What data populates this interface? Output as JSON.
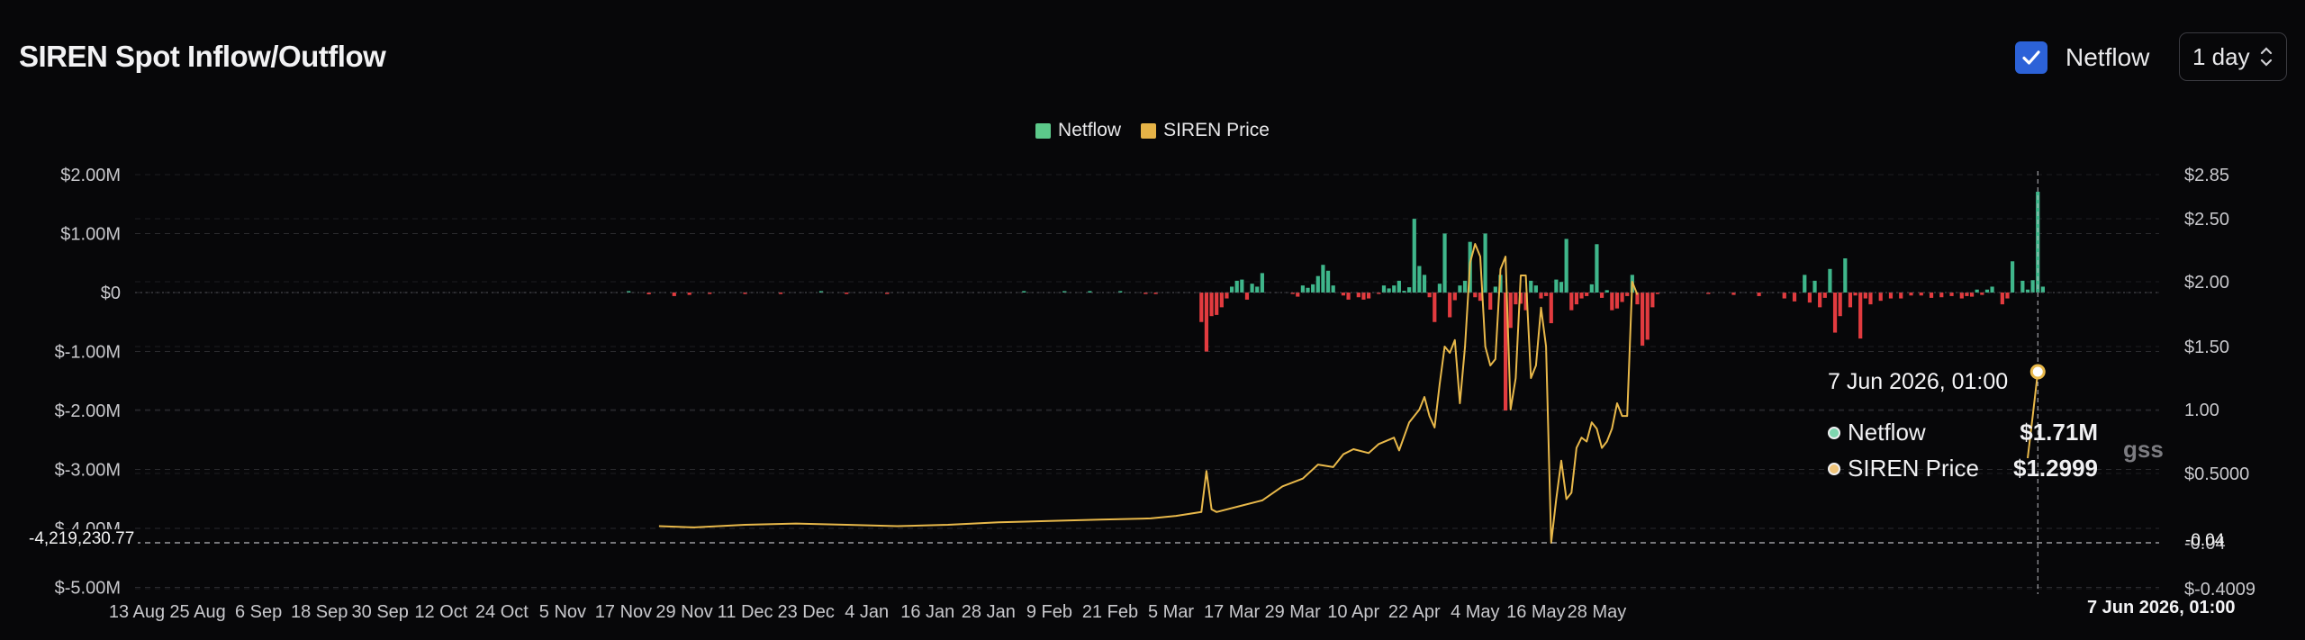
{
  "title": "SIREN Spot Inflow/Outflow",
  "controls": {
    "netflow_checkbox": {
      "label": "Netflow",
      "checked": true
    },
    "interval": {
      "value": "1 day"
    }
  },
  "colors": {
    "positive": "#3fb68b",
    "negative": "#e23b3f",
    "price": "#e8b84a",
    "grid": "#2a2a2e",
    "checkbox": "#2c62d8"
  },
  "legend": [
    {
      "label": "Netflow",
      "color": "#5cc98a"
    },
    {
      "label": "SIREN Price",
      "color": "#e6b347"
    }
  ],
  "tooltip": {
    "title": "7 Jun 2026, 01:00",
    "rows": [
      {
        "label": "Netflow",
        "value": "$1.71M",
        "color": "#7fd6b0"
      },
      {
        "label": "SIREN Price",
        "value": "$1.2999",
        "color": "#efc47a"
      }
    ]
  },
  "crosshair": {
    "y_left_label": "-4,219,230.77",
    "y_right_label": "-0.04",
    "x_label": "7 Jun 2026, 01:00"
  },
  "watermark": "gss",
  "chart_data": {
    "type": "bar+line",
    "left_axis": {
      "ticks": [
        2000000,
        1000000,
        0,
        -1000000,
        -2000000,
        -3000000,
        -4000000,
        -5000000
      ],
      "tick_labels": [
        "$2.00M",
        "$1.00M",
        "$0",
        "$-1.00M",
        "$-2.00M",
        "$-3.00M",
        "$-4.00M",
        "$-5.00M"
      ],
      "range": [
        -5000000,
        2000000
      ]
    },
    "right_axis": {
      "tick_values": [
        2.85,
        2.5,
        2.0,
        1.5,
        1.0,
        0.5,
        -0.04,
        -0.4009
      ],
      "tick_labels": [
        "$2.85",
        "$2.50",
        "$2.00",
        "$1.50",
        "1.00",
        "$0.5000",
        "-0.04",
        "$-0.4009"
      ]
    },
    "x_labels": [
      "13 Aug",
      "25 Aug",
      "6 Sep",
      "18 Sep",
      "30 Sep",
      "12 Oct",
      "24 Oct",
      "5 Nov",
      "17 Nov",
      "29 Nov",
      "11 Dec",
      "23 Dec",
      "4 Jan",
      "16 Jan",
      "28 Jan",
      "9 Feb",
      "21 Feb",
      "5 Mar",
      "17 Mar",
      "29 Mar",
      "10 Apr",
      "22 Apr",
      "4 May",
      "16 May",
      "28 May"
    ],
    "x_day_offset_note": "",
    "netflow_series": {
      "name": "Netflow",
      "points": [
        [
          97,
          10000
        ],
        [
          101,
          -30000
        ],
        [
          106,
          -60000
        ],
        [
          109,
          -40000
        ],
        [
          113,
          -20000
        ],
        [
          120,
          -20000
        ],
        [
          127,
          -10000
        ],
        [
          135,
          10000
        ],
        [
          140,
          -10000
        ],
        [
          148,
          -10000
        ],
        [
          175,
          10000
        ],
        [
          183,
          10000
        ],
        [
          188,
          20000
        ],
        [
          194,
          20000
        ],
        [
          199,
          -20000
        ],
        [
          201,
          -20000
        ],
        [
          210,
          -500000
        ],
        [
          211,
          -1000000
        ],
        [
          212,
          -400000
        ],
        [
          213,
          -380000
        ],
        [
          214,
          -250000
        ],
        [
          215,
          -100000
        ],
        [
          216,
          100000
        ],
        [
          217,
          200000
        ],
        [
          218,
          220000
        ],
        [
          219,
          -120000
        ],
        [
          220,
          150000
        ],
        [
          221,
          100000
        ],
        [
          222,
          330000
        ],
        [
          228,
          -20000
        ],
        [
          229,
          -70000
        ],
        [
          230,
          120000
        ],
        [
          231,
          80000
        ],
        [
          232,
          140000
        ],
        [
          233,
          280000
        ],
        [
          234,
          470000
        ],
        [
          235,
          370000
        ],
        [
          236,
          120000
        ],
        [
          238,
          -50000
        ],
        [
          239,
          -120000
        ],
        [
          241,
          -80000
        ],
        [
          242,
          -120000
        ],
        [
          243,
          -100000
        ],
        [
          245,
          -20000
        ],
        [
          246,
          120000
        ],
        [
          247,
          70000
        ],
        [
          248,
          120000
        ],
        [
          249,
          200000
        ],
        [
          250,
          30000
        ],
        [
          251,
          90000
        ],
        [
          252,
          1250000
        ],
        [
          253,
          450000
        ],
        [
          254,
          300000
        ],
        [
          255,
          -80000
        ],
        [
          256,
          -500000
        ],
        [
          257,
          150000
        ],
        [
          258,
          1000000
        ],
        [
          259,
          -420000
        ],
        [
          260,
          -130000
        ],
        [
          261,
          120000
        ],
        [
          262,
          200000
        ],
        [
          263,
          860000
        ],
        [
          264,
          -80000
        ],
        [
          265,
          -140000
        ],
        [
          266,
          1000000
        ],
        [
          267,
          -290000
        ],
        [
          268,
          100000
        ],
        [
          269,
          300000
        ],
        [
          270,
          -2000000
        ],
        [
          271,
          -600000
        ],
        [
          272,
          -200000
        ],
        [
          273,
          -190000
        ],
        [
          274,
          -300000
        ],
        [
          275,
          200000
        ],
        [
          276,
          120000
        ],
        [
          277,
          -100000
        ],
        [
          278,
          -60000
        ],
        [
          279,
          -520000
        ],
        [
          280,
          220000
        ],
        [
          281,
          180000
        ],
        [
          282,
          910000
        ],
        [
          283,
          -300000
        ],
        [
          284,
          -200000
        ],
        [
          285,
          -100000
        ],
        [
          286,
          -60000
        ],
        [
          287,
          140000
        ],
        [
          288,
          820000
        ],
        [
          289,
          -90000
        ],
        [
          290,
          40000
        ],
        [
          291,
          -300000
        ],
        [
          292,
          -270000
        ],
        [
          293,
          -160000
        ],
        [
          294,
          -60000
        ],
        [
          295,
          300000
        ],
        [
          296,
          -200000
        ],
        [
          297,
          -900000
        ],
        [
          298,
          -800000
        ],
        [
          299,
          -250000
        ],
        [
          300,
          -10000
        ],
        [
          310,
          -20000
        ],
        [
          315,
          -40000
        ],
        [
          320,
          -60000
        ],
        [
          325,
          -100000
        ],
        [
          327,
          -150000
        ],
        [
          329,
          300000
        ],
        [
          330,
          -170000
        ],
        [
          331,
          200000
        ],
        [
          332,
          -250000
        ],
        [
          333,
          -90000
        ],
        [
          334,
          400000
        ],
        [
          335,
          -680000
        ],
        [
          336,
          -400000
        ],
        [
          337,
          580000
        ],
        [
          338,
          -250000
        ],
        [
          339,
          -50000
        ],
        [
          340,
          -780000
        ],
        [
          341,
          -100000
        ],
        [
          342,
          -200000
        ],
        [
          344,
          -140000
        ],
        [
          346,
          -100000
        ],
        [
          348,
          -100000
        ],
        [
          350,
          -50000
        ],
        [
          352,
          -50000
        ],
        [
          354,
          -90000
        ],
        [
          356,
          -80000
        ],
        [
          358,
          -60000
        ],
        [
          360,
          -100000
        ],
        [
          361,
          -60000
        ],
        [
          362,
          -70000
        ],
        [
          363,
          50000
        ],
        [
          364,
          -40000
        ],
        [
          365,
          50000
        ],
        [
          366,
          100000
        ],
        [
          368,
          -200000
        ],
        [
          369,
          -100000
        ],
        [
          370,
          530000
        ],
        [
          372,
          200000
        ],
        [
          373,
          50000
        ],
        [
          374,
          210000
        ],
        [
          375,
          1710000
        ],
        [
          376,
          100000
        ]
      ]
    },
    "price_series": {
      "name": "SIREN Price",
      "points": [
        [
          103,
          0.09
        ],
        [
          110,
          0.08
        ],
        [
          120,
          0.1
        ],
        [
          130,
          0.11
        ],
        [
          140,
          0.1
        ],
        [
          150,
          0.09
        ],
        [
          160,
          0.1
        ],
        [
          170,
          0.12
        ],
        [
          180,
          0.13
        ],
        [
          190,
          0.14
        ],
        [
          200,
          0.15
        ],
        [
          205,
          0.17
        ],
        [
          210,
          0.2
        ],
        [
          211,
          0.52
        ],
        [
          212,
          0.22
        ],
        [
          213,
          0.2
        ],
        [
          218,
          0.25
        ],
        [
          222,
          0.29
        ],
        [
          226,
          0.4
        ],
        [
          230,
          0.46
        ],
        [
          233,
          0.57
        ],
        [
          236,
          0.55
        ],
        [
          238,
          0.65
        ],
        [
          240,
          0.69
        ],
        [
          243,
          0.66
        ],
        [
          245,
          0.73
        ],
        [
          248,
          0.78
        ],
        [
          249,
          0.68
        ],
        [
          251,
          0.9
        ],
        [
          253,
          1.0
        ],
        [
          254,
          1.1
        ],
        [
          255,
          0.95
        ],
        [
          256,
          0.86
        ],
        [
          257,
          1.2
        ],
        [
          258,
          1.5
        ],
        [
          259,
          1.45
        ],
        [
          260,
          1.55
        ],
        [
          261,
          1.05
        ],
        [
          262,
          1.5
        ],
        [
          263,
          2.15
        ],
        [
          264,
          2.3
        ],
        [
          265,
          2.2
        ],
        [
          266,
          1.5
        ],
        [
          267,
          1.35
        ],
        [
          268,
          1.4
        ],
        [
          269,
          2.1
        ],
        [
          270,
          2.2
        ],
        [
          271,
          1.0
        ],
        [
          272,
          1.25
        ],
        [
          273,
          2.05
        ],
        [
          274,
          2.05
        ],
        [
          275,
          1.25
        ],
        [
          276,
          1.35
        ],
        [
          277,
          1.8
        ],
        [
          278,
          1.5
        ],
        [
          279,
          -0.04
        ],
        [
          280,
          0.3
        ],
        [
          281,
          0.6
        ],
        [
          282,
          0.3
        ],
        [
          283,
          0.35
        ],
        [
          284,
          0.7
        ],
        [
          285,
          0.78
        ],
        [
          286,
          0.75
        ],
        [
          287,
          0.9
        ],
        [
          288,
          0.85
        ],
        [
          289,
          0.7
        ],
        [
          290,
          0.75
        ],
        [
          291,
          0.85
        ],
        [
          292,
          1.05
        ],
        [
          293,
          0.95
        ],
        [
          294,
          0.95
        ],
        [
          295,
          2.0
        ],
        [
          296,
          1.9
        ]
      ],
      "tail_points": [
        [
          373,
          0.62
        ],
        [
          374,
          0.95
        ],
        [
          375,
          1.2999
        ]
      ]
    }
  }
}
